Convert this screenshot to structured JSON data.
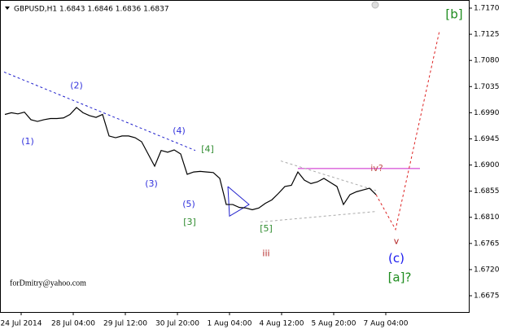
{
  "chart_data": {
    "type": "line",
    "title": "GBPUSD,H1  1.6843 1.6846 1.6836 1.6837",
    "watermark": "forDmitry@yahoo.com",
    "x": [
      -10,
      -6,
      -2,
      2,
      6,
      10,
      14,
      18,
      22,
      26,
      30,
      34,
      38,
      42,
      46,
      50,
      54,
      58,
      62,
      66,
      70,
      74,
      78,
      82,
      86,
      90,
      94,
      98,
      102,
      106,
      110,
      114,
      118,
      122,
      126,
      130,
      134,
      138,
      142,
      146,
      150,
      154,
      158,
      162,
      166,
      170,
      174,
      178,
      182,
      186,
      190,
      194,
      198,
      202,
      206,
      210,
      214,
      218
    ],
    "series": [
      {
        "name": "GBPUSD",
        "color": "#000000",
        "values": [
          1.6987,
          1.699,
          1.6988,
          1.6991,
          1.6978,
          1.6975,
          1.6978,
          1.698,
          1.698,
          1.6981,
          1.6987,
          1.6999,
          1.699,
          1.6985,
          1.6982,
          1.6987,
          1.695,
          1.6947,
          1.695,
          1.695,
          1.6947,
          1.694,
          1.6919,
          1.6898,
          1.6925,
          1.6922,
          1.6926,
          1.6919,
          1.6884,
          1.6888,
          1.6889,
          1.6888,
          1.6887,
          1.6877,
          1.6832,
          1.6832,
          1.6827,
          1.6826,
          1.6823,
          1.6826,
          1.6834,
          1.684,
          1.6851,
          1.6863,
          1.6865,
          1.6888,
          1.6874,
          1.6868,
          1.6871,
          1.6877,
          1.687,
          1.6863,
          1.6832,
          1.6849,
          1.6854,
          1.6857,
          1.686,
          1.6849
        ]
      }
    ],
    "xlim": [
      -13,
      275
    ],
    "xticks": [
      {
        "value": 0,
        "label": "24 Jul 2014"
      },
      {
        "value": 32,
        "label": "28 Jul 04:00"
      },
      {
        "value": 64,
        "label": "29 Jul 12:00"
      },
      {
        "value": 96,
        "label": "30 Jul 20:00"
      },
      {
        "value": 128,
        "label": "1 Aug 04:00"
      },
      {
        "value": 160,
        "label": "4 Aug 12:00"
      },
      {
        "value": 192,
        "label": "5 Aug 20:00"
      },
      {
        "value": 224,
        "label": "7 Aug 04:00"
      }
    ],
    "ylim": [
      1.6647,
      1.7184
    ],
    "yticks": [
      {
        "value": 1.717,
        "label": "1.7170"
      },
      1.7125,
      {
        "value": 1.708,
        "label": "1.7080"
      },
      1.7035,
      {
        "value": 1.699,
        "label": "1.6990"
      },
      1.6945,
      {
        "value": 1.69,
        "label": "1.6900"
      },
      1.6855,
      {
        "value": 1.681,
        "label": "1.6810"
      },
      1.6765,
      {
        "value": 1.672,
        "label": "1.6720"
      },
      1.6675
    ],
    "annotations": [
      {
        "label": "(1)",
        "x": 4,
        "y": 1.694,
        "color": "#3333dd"
      },
      {
        "label": "(2)",
        "x": 34,
        "y": 1.7036,
        "color": "#3333dd"
      },
      {
        "label": "(3)",
        "x": 80,
        "y": 1.6867,
        "color": "#3333dd"
      },
      {
        "label": "(4)",
        "x": 97,
        "y": 1.6958,
        "color": "#3333dd"
      },
      {
        "label": "(5)",
        "x": 103,
        "y": 1.6832,
        "color": "#3333dd"
      },
      {
        "label": "[3]",
        "x": 103.5,
        "y": 1.6801,
        "color": "#2e8b2e"
      },
      {
        "label": "[4]",
        "x": 114.5,
        "y": 1.6927,
        "color": "#2e8b2e"
      },
      {
        "label": "[5]",
        "x": 150.5,
        "y": 1.679,
        "color": "#2e8b2e"
      },
      {
        "label": "iii",
        "x": 150.5,
        "y": 1.6747,
        "color": "#b22222"
      },
      {
        "label": "iv?",
        "x": 218.5,
        "y": 1.6894,
        "color": "#c0504d"
      },
      {
        "label": "v",
        "x": 230.5,
        "y": 1.6768,
        "color": "#b22222"
      },
      {
        "label": "(c)",
        "x": 230.5,
        "y": 1.6739,
        "color": "#1a1aee"
      },
      {
        "label": "[a]?",
        "x": 232.5,
        "y": 1.6706,
        "color": "#1e8c1e"
      },
      {
        "label": "[b]",
        "x": 266,
        "y": 1.7159,
        "color": "#1e8c1e"
      }
    ],
    "overlays": [
      {
        "style": "dashed",
        "color": "#2020cc",
        "x": [
          -10.5,
          107
        ],
        "y": [
          1.706,
          1.6925
        ]
      },
      {
        "style": "solid",
        "color": "#cc22cc",
        "x": [
          170,
          245
        ],
        "y": [
          1.6894,
          1.6894
        ]
      },
      {
        "style": "dashed",
        "color": "#dd2222",
        "x": [
          218,
          230,
          257
        ],
        "y": [
          1.6849,
          1.6789,
          1.7131
        ]
      },
      {
        "style": "solid",
        "color": "#2020cc",
        "x": [
          127,
          140,
          128,
          127
        ],
        "y": [
          1.6863,
          1.6832,
          1.6812,
          1.6863
        ]
      },
      {
        "style": "dashed",
        "color": "#aaaaaa",
        "x": [
          159.5,
          218
        ],
        "y": [
          1.6907,
          1.6856
        ]
      },
      {
        "style": "dashed",
        "color": "#aaaaaa",
        "x": [
          147,
          218
        ],
        "y": [
          1.6802,
          1.682
        ]
      }
    ]
  }
}
